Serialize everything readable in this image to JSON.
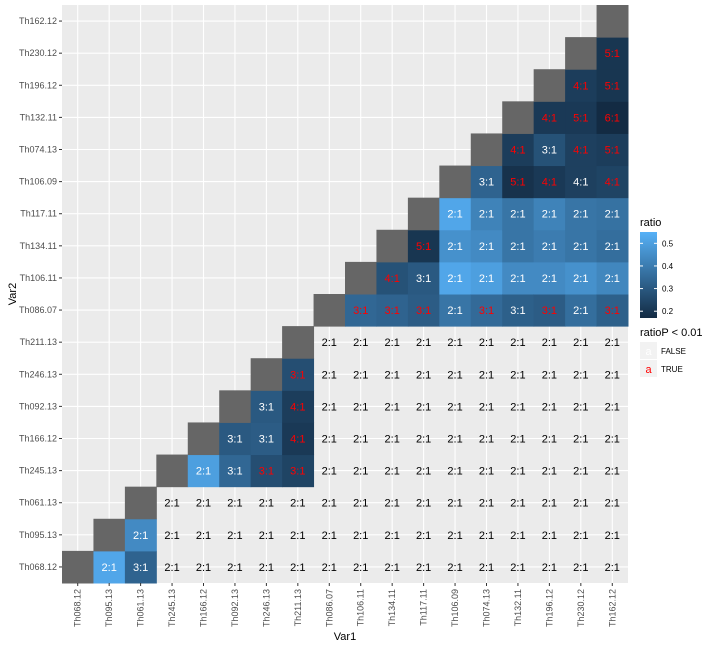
{
  "chart_data": {
    "type": "heatmap",
    "xlabel": "Var1",
    "ylabel": "Var2",
    "x_categories": [
      "Th068.12",
      "Th095.13",
      "Th061.13",
      "Th245.13",
      "Th166.12",
      "Th092.13",
      "Th246.13",
      "Th211.13",
      "Th086.07",
      "Th106.11",
      "Th134.11",
      "Th117.11",
      "Th106.09",
      "Th074.13",
      "Th132.11",
      "Th196.12",
      "Th230.12",
      "Th162.12"
    ],
    "y_categories": [
      "Th068.12",
      "Th095.13",
      "Th061.13",
      "Th245.13",
      "Th166.12",
      "Th092.13",
      "Th246.13",
      "Th211.13",
      "Th086.07",
      "Th106.11",
      "Th134.11",
      "Th117.11",
      "Th106.09",
      "Th074.13",
      "Th132.11",
      "Th196.12",
      "Th230.12",
      "Th162.12"
    ],
    "cells": [
      {
        "x": "Th095.13",
        "y": "Th068.12",
        "label": "2:1",
        "ratio": 0.52,
        "ratioP": false
      },
      {
        "x": "Th061.13",
        "y": "Th068.12",
        "label": "3:1",
        "ratio": 0.33,
        "ratioP": false
      },
      {
        "x": "Th061.13",
        "y": "Th095.13",
        "label": "2:1",
        "ratio": 0.44,
        "ratioP": false
      },
      {
        "x": "Th166.12",
        "y": "Th245.13",
        "label": "2:1",
        "ratio": 0.5,
        "ratioP": false
      },
      {
        "x": "Th092.13",
        "y": "Th245.13",
        "label": "3:1",
        "ratio": 0.34,
        "ratioP": false
      },
      {
        "x": "Th092.13",
        "y": "Th166.12",
        "label": "3:1",
        "ratio": 0.3,
        "ratioP": false
      },
      {
        "x": "Th246.13",
        "y": "Th245.13",
        "label": "3:1",
        "ratio": 0.27,
        "ratioP": true
      },
      {
        "x": "Th246.13",
        "y": "Th166.12",
        "label": "3:1",
        "ratio": 0.31,
        "ratioP": false
      },
      {
        "x": "Th246.13",
        "y": "Th092.13",
        "label": "3:1",
        "ratio": 0.3,
        "ratioP": false
      },
      {
        "x": "Th211.13",
        "y": "Th245.13",
        "label": "3:1",
        "ratio": 0.24,
        "ratioP": true
      },
      {
        "x": "Th211.13",
        "y": "Th166.12",
        "label": "4:1",
        "ratio": 0.21,
        "ratioP": true
      },
      {
        "x": "Th211.13",
        "y": "Th092.13",
        "label": "4:1",
        "ratio": 0.22,
        "ratioP": true
      },
      {
        "x": "Th211.13",
        "y": "Th246.13",
        "label": "3:1",
        "ratio": 0.27,
        "ratioP": true
      },
      {
        "x": "Th106.11",
        "y": "Th086.07",
        "label": "3:1",
        "ratio": 0.34,
        "ratioP": true
      },
      {
        "x": "Th134.11",
        "y": "Th086.07",
        "label": "3:1",
        "ratio": 0.33,
        "ratioP": true
      },
      {
        "x": "Th134.11",
        "y": "Th106.11",
        "label": "4:1",
        "ratio": 0.28,
        "ratioP": true
      },
      {
        "x": "Th117.11",
        "y": "Th086.07",
        "label": "3:1",
        "ratio": 0.31,
        "ratioP": true
      },
      {
        "x": "Th117.11",
        "y": "Th106.11",
        "label": "3:1",
        "ratio": 0.3,
        "ratioP": false
      },
      {
        "x": "Th117.11",
        "y": "Th134.11",
        "label": "5:1",
        "ratio": 0.2,
        "ratioP": true
      },
      {
        "x": "Th106.09",
        "y": "Th086.07",
        "label": "2:1",
        "ratio": 0.38,
        "ratioP": false
      },
      {
        "x": "Th106.09",
        "y": "Th106.11",
        "label": "2:1",
        "ratio": 0.52,
        "ratioP": false
      },
      {
        "x": "Th106.09",
        "y": "Th134.11",
        "label": "2:1",
        "ratio": 0.46,
        "ratioP": false
      },
      {
        "x": "Th106.09",
        "y": "Th117.11",
        "label": "2:1",
        "ratio": 0.52,
        "ratioP": false
      },
      {
        "x": "Th074.13",
        "y": "Th086.07",
        "label": "3:1",
        "ratio": 0.35,
        "ratioP": true
      },
      {
        "x": "Th074.13",
        "y": "Th106.11",
        "label": "2:1",
        "ratio": 0.5,
        "ratioP": false
      },
      {
        "x": "Th074.13",
        "y": "Th134.11",
        "label": "2:1",
        "ratio": 0.44,
        "ratioP": false
      },
      {
        "x": "Th074.13",
        "y": "Th117.11",
        "label": "2:1",
        "ratio": 0.42,
        "ratioP": false
      },
      {
        "x": "Th074.13",
        "y": "Th106.09",
        "label": "3:1",
        "ratio": 0.33,
        "ratioP": false
      },
      {
        "x": "Th132.11",
        "y": "Th086.07",
        "label": "3:1",
        "ratio": 0.32,
        "ratioP": false
      },
      {
        "x": "Th132.11",
        "y": "Th106.11",
        "label": "2:1",
        "ratio": 0.44,
        "ratioP": false
      },
      {
        "x": "Th132.11",
        "y": "Th134.11",
        "label": "2:1",
        "ratio": 0.38,
        "ratioP": false
      },
      {
        "x": "Th132.11",
        "y": "Th117.11",
        "label": "2:1",
        "ratio": 0.38,
        "ratioP": false
      },
      {
        "x": "Th132.11",
        "y": "Th106.09",
        "label": "5:1",
        "ratio": 0.19,
        "ratioP": true
      },
      {
        "x": "Th132.11",
        "y": "Th074.13",
        "label": "4:1",
        "ratio": 0.22,
        "ratioP": true
      },
      {
        "x": "Th196.12",
        "y": "Th086.07",
        "label": "3:1",
        "ratio": 0.31,
        "ratioP": true
      },
      {
        "x": "Th196.12",
        "y": "Th106.11",
        "label": "2:1",
        "ratio": 0.44,
        "ratioP": false
      },
      {
        "x": "Th196.12",
        "y": "Th134.11",
        "label": "2:1",
        "ratio": 0.4,
        "ratioP": false
      },
      {
        "x": "Th196.12",
        "y": "Th117.11",
        "label": "2:1",
        "ratio": 0.42,
        "ratioP": false
      },
      {
        "x": "Th196.12",
        "y": "Th106.09",
        "label": "4:1",
        "ratio": 0.21,
        "ratioP": true
      },
      {
        "x": "Th196.12",
        "y": "Th074.13",
        "label": "3:1",
        "ratio": 0.28,
        "ratioP": false
      },
      {
        "x": "Th196.12",
        "y": "Th132.11",
        "label": "4:1",
        "ratio": 0.21,
        "ratioP": true
      },
      {
        "x": "Th230.12",
        "y": "Th086.07",
        "label": "2:1",
        "ratio": 0.36,
        "ratioP": false
      },
      {
        "x": "Th230.12",
        "y": "Th106.11",
        "label": "2:1",
        "ratio": 0.46,
        "ratioP": false
      },
      {
        "x": "Th230.12",
        "y": "Th134.11",
        "label": "2:1",
        "ratio": 0.38,
        "ratioP": false
      },
      {
        "x": "Th230.12",
        "y": "Th117.11",
        "label": "2:1",
        "ratio": 0.38,
        "ratioP": false
      },
      {
        "x": "Th230.12",
        "y": "Th106.09",
        "label": "4:1",
        "ratio": 0.23,
        "ratioP": false
      },
      {
        "x": "Th230.12",
        "y": "Th074.13",
        "label": "4:1",
        "ratio": 0.23,
        "ratioP": true
      },
      {
        "x": "Th230.12",
        "y": "Th132.11",
        "label": "5:1",
        "ratio": 0.21,
        "ratioP": true
      },
      {
        "x": "Th230.12",
        "y": "Th196.12",
        "label": "4:1",
        "ratio": 0.22,
        "ratioP": true
      },
      {
        "x": "Th162.12",
        "y": "Th086.07",
        "label": "3:1",
        "ratio": 0.32,
        "ratioP": true
      },
      {
        "x": "Th162.12",
        "y": "Th106.11",
        "label": "2:1",
        "ratio": 0.43,
        "ratioP": false
      },
      {
        "x": "Th162.12",
        "y": "Th134.11",
        "label": "2:1",
        "ratio": 0.36,
        "ratioP": false
      },
      {
        "x": "Th162.12",
        "y": "Th117.11",
        "label": "2:1",
        "ratio": 0.37,
        "ratioP": false
      },
      {
        "x": "Th162.12",
        "y": "Th106.09",
        "label": "4:1",
        "ratio": 0.24,
        "ratioP": true
      },
      {
        "x": "Th162.12",
        "y": "Th074.13",
        "label": "5:1",
        "ratio": 0.22,
        "ratioP": true
      },
      {
        "x": "Th162.12",
        "y": "Th132.11",
        "label": "6:1",
        "ratio": 0.17,
        "ratioP": true
      },
      {
        "x": "Th162.12",
        "y": "Th196.12",
        "label": "5:1",
        "ratio": 0.2,
        "ratioP": true
      },
      {
        "x": "Th162.12",
        "y": "Th230.12",
        "label": "5:1",
        "ratio": 0.2,
        "ratioP": true
      }
    ],
    "uncolored_label": "2:1",
    "fill_legend": {
      "title": "ratio",
      "ticks": [
        0.5,
        0.4,
        0.3,
        0.2
      ],
      "tick_labels": [
        "0.5",
        "0.4",
        "0.3",
        "0.2"
      ],
      "range": [
        0.17,
        0.55
      ],
      "low_color": "#132B43",
      "high_color": "#56B1F7"
    },
    "text_legend": {
      "title": "ratioP < 0.01",
      "entries": [
        {
          "key": "a",
          "label": "FALSE",
          "color": "#ffffff"
        },
        {
          "key": "a",
          "label": "TRUE",
          "color": "#ff0000"
        }
      ]
    },
    "diagonal_color": "#666666",
    "panel_background": "#ebebeb",
    "grid": true
  }
}
